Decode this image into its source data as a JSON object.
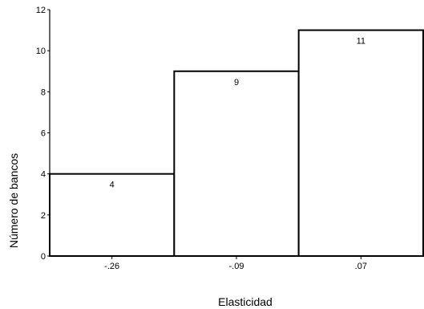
{
  "chart_data": {
    "type": "bar",
    "categories": [
      "-.26",
      "-.09",
      ".07"
    ],
    "values": [
      4,
      9,
      11
    ],
    "data_labels": [
      "4",
      "9",
      "11"
    ],
    "xlabel": "Elasticidad",
    "ylabel": "Número de bancos",
    "ylim": [
      0,
      12
    ],
    "yticks": [
      "0",
      "2",
      "4",
      "6",
      "8",
      "10",
      "12"
    ],
    "grid": false,
    "legend": "none"
  }
}
